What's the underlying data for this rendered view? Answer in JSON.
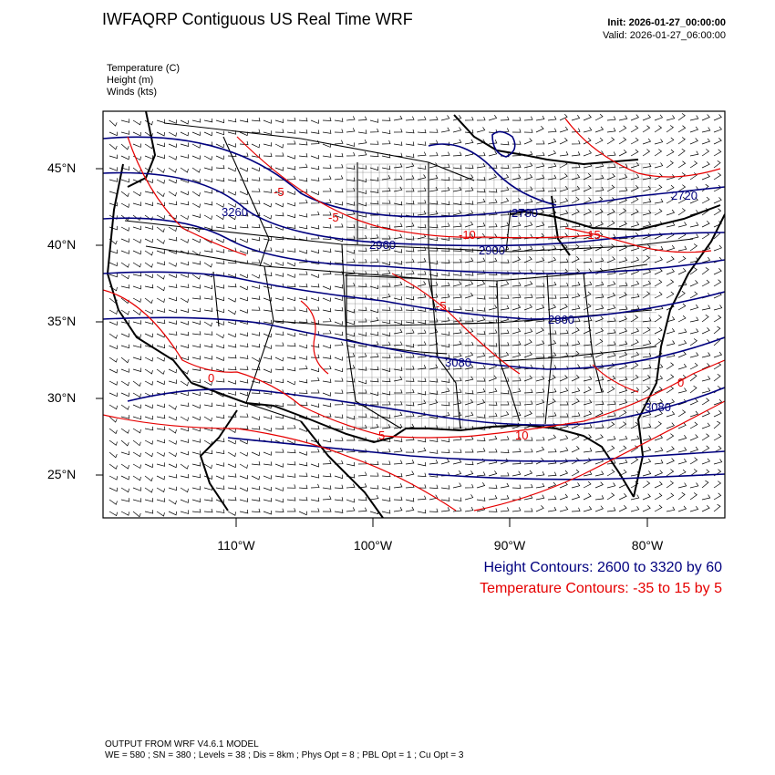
{
  "header": {
    "title": "IWFAQRP Contiguous US Real Time WRF",
    "init": "Init: 2026-01-27_00:00:00",
    "valid": "Valid: 2026-01-27_06:00:00"
  },
  "fields": [
    "Temperature   (C)",
    "Height   (m)",
    "Winds   (kts)"
  ],
  "axes": {
    "lat_labels": [
      "45°N",
      "40°N",
      "35°N",
      "30°N",
      "25°N"
    ],
    "lon_labels": [
      "110°W",
      "100°W",
      "90°W",
      "80°W"
    ]
  },
  "contour_labels": {
    "height": [
      "3260",
      "2960",
      "2900",
      "2780",
      "2960",
      "3080",
      "3080",
      "2720"
    ],
    "temperature": [
      "-5",
      "-10",
      "-15",
      "-5",
      "0",
      "5",
      "10",
      "0",
      "-5"
    ]
  },
  "legend": {
    "height": "Height Contours: 2600 to 3320 by 60",
    "temperature": "Temperature Contours: -35 to 15 by 5"
  },
  "footer": {
    "line1": "OUTPUT FROM WRF V4.6.1 MODEL",
    "line2": "WE = 580 ; SN = 380 ; Levels = 38 ; Dis = 8km ; Phys Opt = 8 ; PBL Opt = 1 ; Cu Opt = 3"
  },
  "colors": {
    "height_contour": "#00007f",
    "temperature_contour": "#e60000",
    "state_borders": "#000000"
  }
}
